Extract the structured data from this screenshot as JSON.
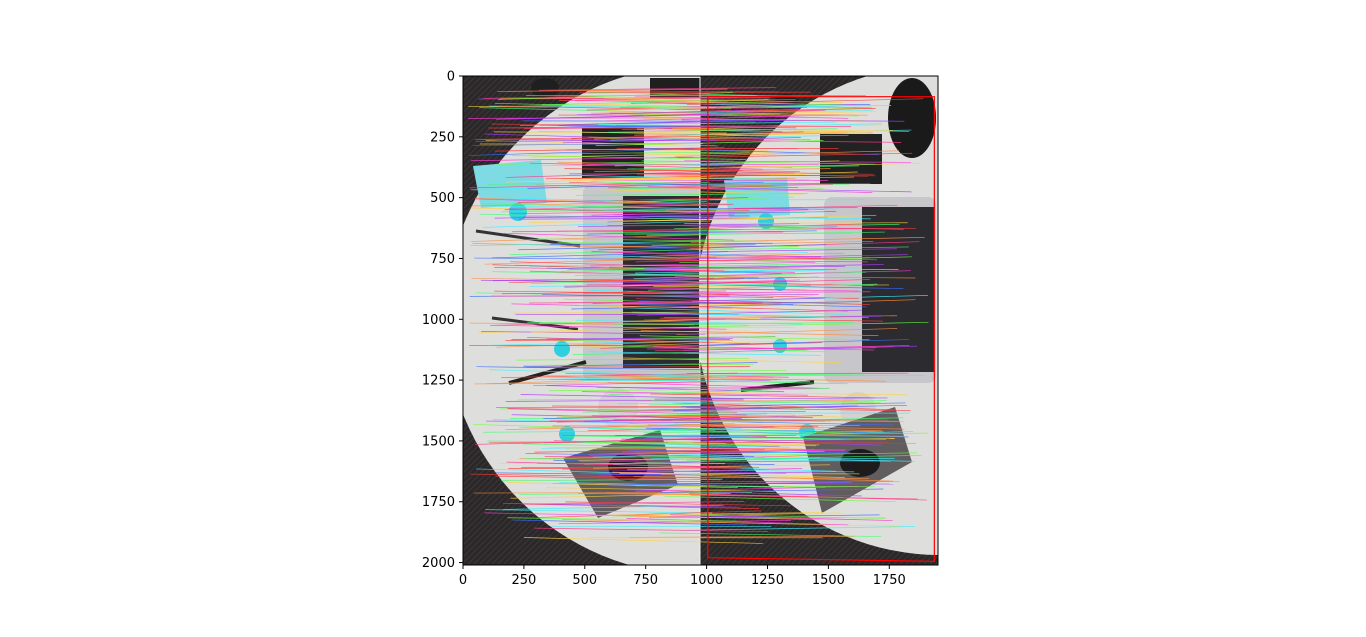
{
  "figure": {
    "kind": "image-plot",
    "description_free": true
  },
  "chart_data": {
    "type": "image",
    "xlim": [
      0,
      1950
    ],
    "ylim": [
      2010,
      0
    ],
    "x_ticks": [
      "0",
      "250",
      "500",
      "750",
      "1000",
      "1250",
      "1500",
      "1750"
    ],
    "y_ticks": [
      "0",
      "250",
      "500",
      "750",
      "1000",
      "1250",
      "1500",
      "1750",
      "2000"
    ],
    "x_tick_values": [
      0,
      250,
      500,
      750,
      1000,
      1250,
      1500,
      1750
    ],
    "y_tick_values": [
      0,
      250,
      500,
      750,
      1000,
      1250,
      1500,
      1750,
      2000
    ],
    "homography_box_color": "#ff0000",
    "homography_box": [
      [
        1005,
        85
      ],
      [
        1935,
        85
      ],
      [
        1935,
        1995
      ],
      [
        1005,
        1980
      ]
    ],
    "panels": 2,
    "panel_split_x": 975
  },
  "colors": {
    "table": "#dcdcdc",
    "floor": "#2d2a2b",
    "laptop": "#c9c9cd",
    "keyboard": "#2b2b2e",
    "accent_cyan": "#35d2e0",
    "mousepad": "#5e5a5c",
    "box": "#ff0000"
  }
}
